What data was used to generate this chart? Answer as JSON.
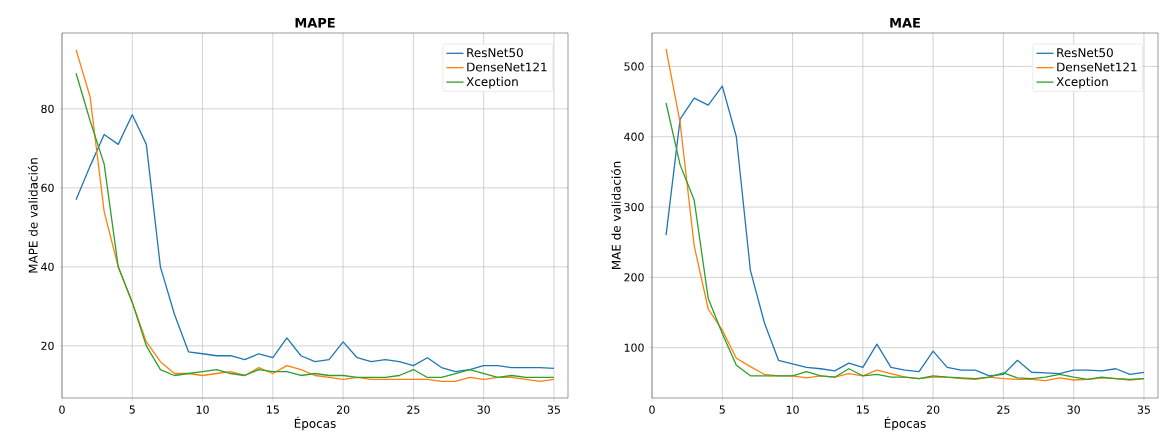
{
  "chart_data": [
    {
      "type": "line",
      "title": "MAPE",
      "xlabel": "Épocas",
      "ylabel": "MAPE de validación",
      "x": [
        1,
        2,
        3,
        4,
        5,
        6,
        7,
        8,
        9,
        10,
        11,
        12,
        13,
        14,
        15,
        16,
        17,
        18,
        19,
        20,
        21,
        22,
        23,
        24,
        25,
        26,
        27,
        28,
        29,
        30,
        31,
        32,
        33,
        34,
        35
      ],
      "series": [
        {
          "name": "ResNet50",
          "color": "#1f77b4",
          "values": [
            57,
            65.5,
            73.5,
            71,
            78.5,
            71,
            40,
            28,
            18.5,
            18,
            17.5,
            17.5,
            16.5,
            18,
            17,
            22,
            17.5,
            16,
            16.5,
            21,
            17,
            16,
            16.5,
            16,
            15,
            17,
            14.5,
            13.5,
            14,
            15,
            15,
            14.5,
            14.5,
            14.5,
            14.3
          ]
        },
        {
          "name": "DenseNet121",
          "color": "#ff7f0e",
          "values": [
            95,
            83,
            54,
            40,
            31,
            21,
            16,
            13,
            13,
            12.5,
            13,
            13.5,
            12.5,
            14.5,
            13,
            15,
            14,
            12.5,
            12,
            11.5,
            12,
            11.5,
            11.5,
            11.5,
            11.5,
            11.5,
            11,
            11,
            12,
            11.5,
            12,
            12,
            11.5,
            11,
            11.5
          ]
        },
        {
          "name": "Xception",
          "color": "#2ca02c",
          "values": [
            89,
            77,
            66,
            40,
            31,
            20,
            14,
            12.5,
            13,
            13.5,
            14,
            13,
            12.5,
            14,
            13.5,
            13.5,
            12.5,
            13,
            12.5,
            12.5,
            12,
            12,
            12,
            12.5,
            14,
            12,
            12,
            13,
            14,
            13,
            12,
            12.5,
            12,
            12,
            12
          ]
        }
      ],
      "xlim": [
        0,
        36
      ],
      "ylim": [
        6.8,
        99.2
      ],
      "xticks": [
        0,
        5,
        10,
        15,
        20,
        25,
        30,
        35
      ],
      "yticks": [
        20,
        40,
        60,
        80
      ],
      "grid": true,
      "legend": "top right"
    },
    {
      "type": "line",
      "title": "MAE",
      "xlabel": "Épocas",
      "ylabel": "MAE de validación",
      "x": [
        1,
        2,
        3,
        4,
        5,
        6,
        7,
        8,
        9,
        10,
        11,
        12,
        13,
        14,
        15,
        16,
        17,
        18,
        19,
        20,
        21,
        22,
        23,
        24,
        25,
        26,
        27,
        28,
        29,
        30,
        31,
        32,
        33,
        34,
        35
      ],
      "series": [
        {
          "name": "ResNet50",
          "color": "#1f77b4",
          "values": [
            260,
            425,
            455,
            445,
            472,
            400,
            210,
            135,
            82,
            77,
            72,
            70,
            67,
            78,
            72,
            105,
            72,
            68,
            66,
            95,
            72,
            68,
            68,
            60,
            62,
            82,
            65,
            64,
            63,
            68,
            68,
            67,
            70,
            62,
            65
          ]
        },
        {
          "name": "DenseNet121",
          "color": "#ff7f0e",
          "values": [
            525,
            420,
            245,
            155,
            125,
            85,
            73,
            62,
            60,
            60,
            57,
            60,
            58,
            63,
            60,
            68,
            63,
            58,
            56,
            58,
            58,
            56,
            55,
            58,
            56,
            55,
            55,
            53,
            57,
            54,
            55,
            57,
            56,
            54,
            56
          ]
        },
        {
          "name": "Xception",
          "color": "#2ca02c",
          "values": [
            448,
            360,
            310,
            170,
            120,
            75,
            60,
            60,
            60,
            60,
            66,
            60,
            58,
            70,
            60,
            62,
            58,
            58,
            56,
            60,
            58,
            57,
            56,
            58,
            64,
            57,
            56,
            58,
            62,
            58,
            55,
            58,
            56,
            55,
            56
          ]
        }
      ],
      "xlim": [
        0,
        36
      ],
      "ylim": [
        28.4,
        547.6
      ],
      "xticks": [
        0,
        5,
        10,
        15,
        20,
        25,
        30,
        35
      ],
      "yticks": [
        100,
        200,
        300,
        400,
        500
      ],
      "grid": true,
      "legend": "top right"
    }
  ]
}
